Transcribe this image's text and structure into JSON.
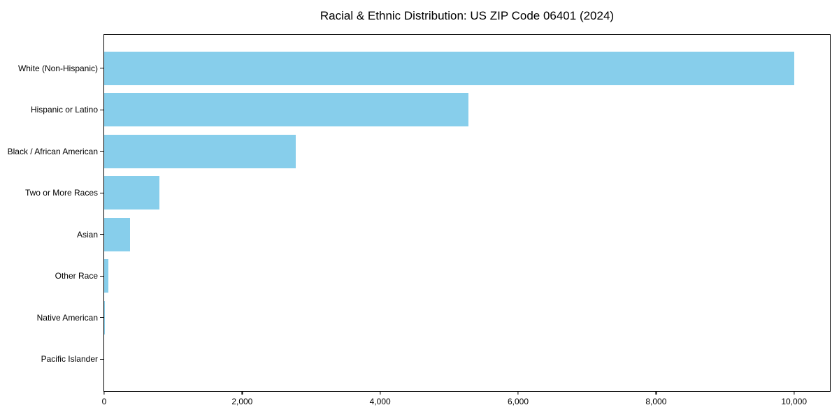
{
  "figure": {
    "title": "Racial & Ethnic Distribution: US ZIP Code 06401 (2024)"
  },
  "colors": {
    "bar": "#87CEEB",
    "axis": "#000000",
    "text": "#000000",
    "background": "#FFFFFF"
  },
  "chart_data": {
    "type": "bar",
    "orientation": "horizontal",
    "title": "Racial & Ethnic Distribution: US ZIP Code 06401 (2024)",
    "categories": [
      "White (Non-Hispanic)",
      "Hispanic or Latino",
      "Black / African American",
      "Two or More Races",
      "Asian",
      "Other Race",
      "Native American",
      "Pacific Islander"
    ],
    "values": [
      10000,
      5280,
      2780,
      800,
      375,
      65,
      12,
      0
    ],
    "xlabel": "",
    "ylabel": "",
    "xlim": [
      0,
      10540
    ],
    "x_ticks": [
      0,
      2000,
      4000,
      6000,
      8000,
      10000
    ],
    "x_tick_labels": [
      "0",
      "2,000",
      "4,000",
      "6,000",
      "8,000",
      "10,000"
    ],
    "grid": false,
    "legend": null,
    "bar_color": "#87CEEB"
  }
}
